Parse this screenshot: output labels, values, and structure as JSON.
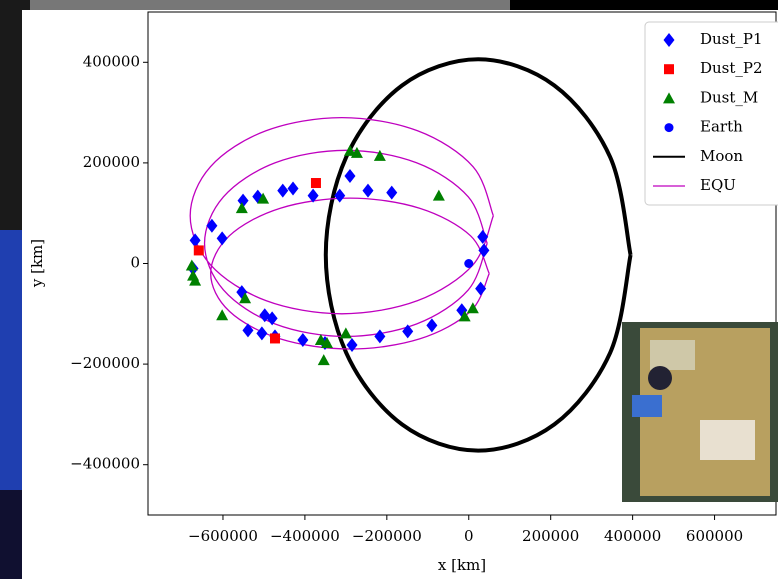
{
  "chart_data": {
    "type": "scatter",
    "x_label": "x [km]",
    "y_label": "y [km]",
    "xlim": [
      -783000,
      750000
    ],
    "ylim": [
      -500000,
      500000
    ],
    "xticks": [
      {
        "value": -600000,
        "label": "−600000"
      },
      {
        "value": -400000,
        "label": "−400000"
      },
      {
        "value": -200000,
        "label": "−200000"
      },
      0,
      200000,
      400000,
      600000
    ],
    "yticks": [
      {
        "value": -400000,
        "label": "−400000"
      },
      {
        "value": -200000,
        "label": "−200000"
      },
      0,
      200000,
      400000
    ],
    "legend": "upper right",
    "series": [
      {
        "name": "Dust_P1",
        "kind": "scatter",
        "marker": "diamond",
        "color": "#0000ff",
        "x": [
          34000,
          37000,
          29000,
          -17000,
          -90000,
          -149000,
          -217000,
          -285000,
          -351000,
          -405000,
          -473000,
          -505000,
          -539000,
          -554000,
          -498000,
          -480000,
          -602000,
          -627000,
          -668000,
          -673000,
          -551000,
          -515000,
          -454000,
          -429000,
          -380000,
          -315000,
          -290000,
          -246000,
          -188000
        ],
        "y": [
          53000,
          26000,
          -50000,
          -93000,
          -123000,
          -135000,
          -145000,
          -162000,
          -158000,
          -152000,
          -145000,
          -139000,
          -133000,
          -57000,
          -103000,
          -109000,
          50000,
          75000,
          46000,
          -10000,
          125000,
          133000,
          145000,
          149000,
          135000,
          135000,
          174000,
          145000,
          141000
        ]
      },
      {
        "name": "Dust_P2",
        "kind": "scatter",
        "marker": "square",
        "color": "#ff0000",
        "x": [
          -373000,
          -659000,
          -473000
        ],
        "y": [
          160000,
          26000,
          -149000
        ]
      },
      {
        "name": "Dust_M",
        "kind": "scatter",
        "marker": "triangle",
        "color": "#008000",
        "x": [
          -290000,
          -273000,
          -217000,
          -73000,
          -554000,
          -502000,
          -546000,
          -602000,
          -673000,
          -676000,
          -668000,
          -361000,
          -346000,
          -354000,
          -300000,
          -10000,
          10000
        ],
        "y": [
          224000,
          220000,
          214000,
          135000,
          110000,
          129000,
          -69000,
          -103000,
          -24000,
          -4000,
          -34000,
          -152000,
          -158000,
          -192000,
          -139000,
          -105000,
          -89000
        ]
      },
      {
        "name": "Earth",
        "kind": "scatter",
        "marker": "circle",
        "color": "#0000ff",
        "x": [
          0
        ],
        "y": [
          0
        ]
      },
      {
        "name": "Moon",
        "kind": "line",
        "color": "#000000",
        "x": [
          395000,
          345150,
          209000,
          23000,
          -163000,
          -299150,
          -349000,
          -299150,
          -163000,
          23000,
          209000,
          345150,
          395000
        ],
        "y": [
          17000,
          211500,
          353900,
          406000,
          353900,
          211500,
          17000,
          -177500,
          -319900,
          -372000,
          -319900,
          -177500,
          17000
        ]
      },
      {
        "name": "EQU",
        "kind": "line",
        "color": "#bf00bf",
        "x": [
          45000,
          -1230,
          -127500,
          -300000,
          -472500,
          -598770,
          -645000,
          -598770,
          -472500,
          -300000,
          -127500,
          -1230,
          45000,
          null,
          60000,
          10420,
          -125000,
          -310000,
          -495000,
          -630420,
          -680000,
          -630420,
          -495000,
          -310000,
          -125000,
          10420,
          60000,
          null,
          50000,
          4440,
          -120000,
          -290000,
          -460000,
          -584440,
          -630000,
          -584440,
          -460000,
          -290000,
          -120000,
          4440,
          50000
        ],
        "y": [
          40000,
          132500,
          200210,
          225000,
          200210,
          132500,
          40000,
          -52500,
          -120210,
          -145000,
          -120210,
          -52500,
          40000,
          null,
          95000,
          192500,
          263870,
          290000,
          263870,
          192500,
          95000,
          -2500,
          -73870,
          -100000,
          -73870,
          -2500,
          95000,
          null,
          -20000,
          55000,
          109900,
          130000,
          109900,
          55000,
          -20000,
          -95000,
          -149900,
          -170000,
          -149900,
          -95000,
          -20000
        ]
      }
    ]
  }
}
